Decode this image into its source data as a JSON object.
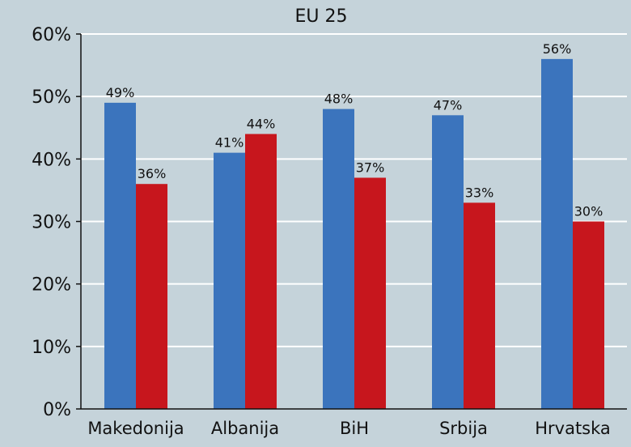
{
  "chart_data": {
    "type": "bar",
    "title": "EU 25",
    "xlabel": "",
    "ylabel": "",
    "categories": [
      "Makedonija",
      "Albanija",
      "BiH",
      "Srbija",
      "Hrvatska"
    ],
    "series": [
      {
        "color": "#3b74bd",
        "values": [
          49,
          41,
          48,
          47,
          56
        ]
      },
      {
        "color": "#c7161d",
        "values": [
          36,
          44,
          37,
          33,
          30
        ]
      }
    ],
    "data_labels": [
      [
        "49%",
        "41%",
        "48%",
        "47%",
        "56%"
      ],
      [
        "36%",
        "44%",
        "37%",
        "33%",
        "30%"
      ]
    ],
    "ylim": [
      0,
      60
    ],
    "yticks": [
      0,
      10,
      20,
      30,
      40,
      50,
      60
    ],
    "ytick_labels": [
      "0%",
      "10%",
      "20%",
      "30%",
      "40%",
      "50%",
      "60%"
    ],
    "grid": true,
    "legend": "none",
    "colors": {
      "background": "#c5d3da",
      "gridline": "#ffffff",
      "axis": "#111111"
    }
  }
}
